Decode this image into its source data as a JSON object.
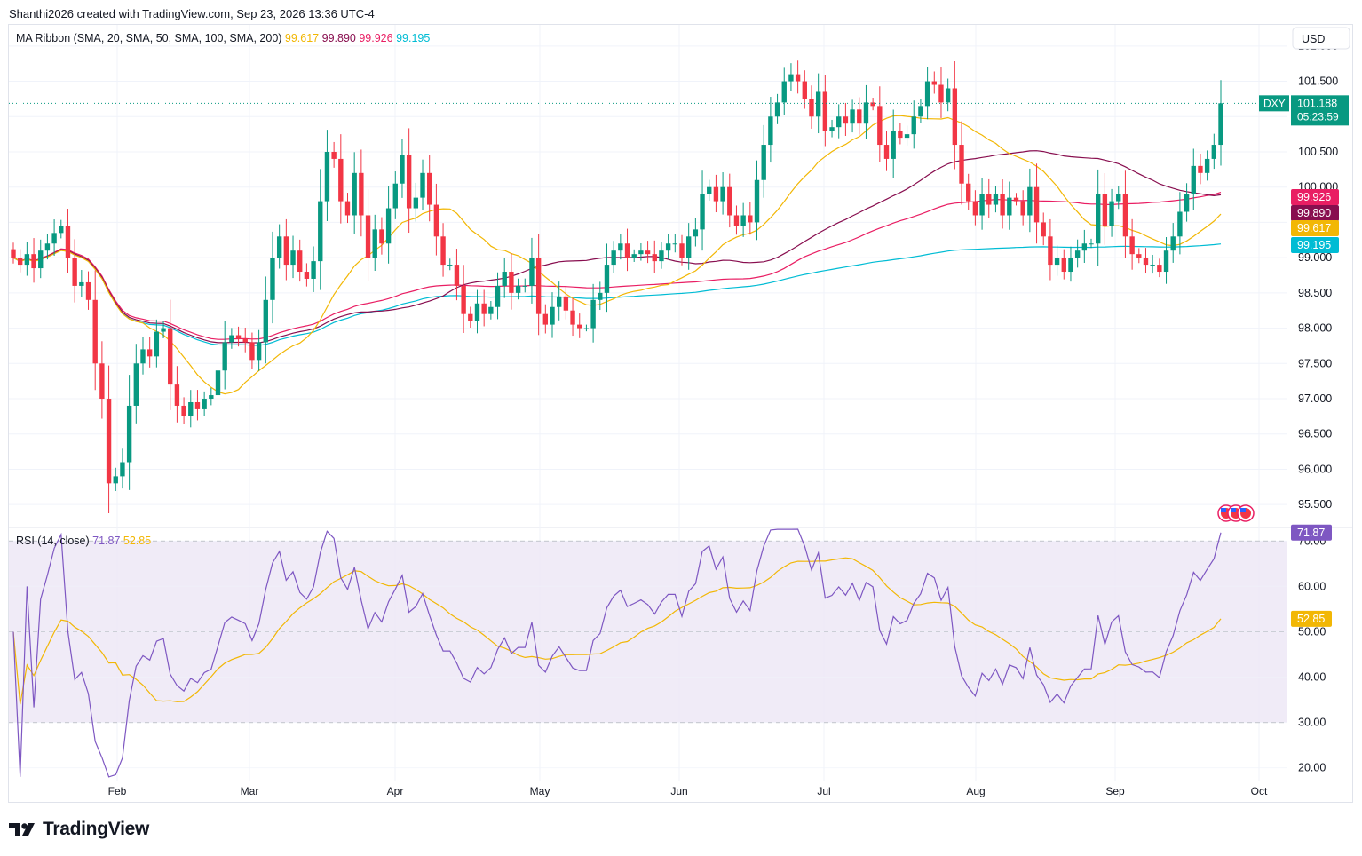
{
  "header": {
    "attribution": "Shanthi2026 created with TradingView.com, Sep 23, 2026 13:36 UTC-4"
  },
  "footer": {
    "brand": "TradingView"
  },
  "currency": "USD",
  "main_legend": {
    "label": "MA Ribbon (SMA, 20, SMA, 50, SMA, 100, SMA, 200)",
    "values": [
      {
        "text": "99.617",
        "color": "#f2b705"
      },
      {
        "text": "99.890",
        "color": "#880e4f"
      },
      {
        "text": "99.926",
        "color": "#e91e63"
      },
      {
        "text": "99.195",
        "color": "#00bcd4"
      }
    ]
  },
  "rsi_legend": {
    "label": "RSI (14, close)",
    "values": [
      {
        "text": "71.87",
        "color": "#7e57c2"
      },
      {
        "text": "52.85",
        "color": "#f2b705"
      }
    ]
  },
  "price_badges": {
    "symbol": "DXY",
    "last": "101.188",
    "countdown": "05:23:59",
    "ma_tags": [
      {
        "text": "99.926",
        "color": "#e91e63",
        "value": 99.926
      },
      {
        "text": "99.890",
        "color": "#880e4f",
        "value": 99.89
      },
      {
        "text": "99.617",
        "color": "#f2b705",
        "value": 99.617
      },
      {
        "text": "99.195",
        "color": "#00bcd4",
        "value": 99.195
      }
    ]
  },
  "rsi_badges": [
    {
      "text": "71.87",
      "color": "#7e57c2",
      "value": 71.87
    },
    {
      "text": "52.85",
      "color": "#f2b705",
      "value": 52.85
    }
  ],
  "colors": {
    "up": "#089981",
    "down": "#f23645",
    "sma20": "#f2b705",
    "sma50": "#880e4f",
    "sma100": "#e91e63",
    "sma200": "#00bcd4",
    "rsi": "#7e57c2",
    "rsi_ma": "#f2b705",
    "rsi_band": "#ede7f6"
  },
  "chart_data": [
    {
      "type": "candlestick",
      "symbol": "DXY",
      "ylim": [
        95.2,
        102.3
      ],
      "y_ticks": [
        "95.500",
        "96.000",
        "96.500",
        "97.000",
        "97.500",
        "98.000",
        "98.500",
        "99.000",
        "99.500",
        "100.000",
        "100.500",
        "101.000",
        "101.500",
        "102.000"
      ],
      "x_ticks": [
        "Feb",
        "Mar",
        "Apr",
        "May",
        "Jun",
        "Jul",
        "Aug",
        "Sep",
        "Oct"
      ],
      "last_price": 101.188,
      "grid": true,
      "closes": [
        99.0,
        98.9,
        99.05,
        98.85,
        99.1,
        99.2,
        99.35,
        99.45,
        99.0,
        98.6,
        98.65,
        98.4,
        97.5,
        97.0,
        95.8,
        95.9,
        96.1,
        96.9,
        97.5,
        97.7,
        97.6,
        97.95,
        98.0,
        97.2,
        96.9,
        96.75,
        96.95,
        96.85,
        97.0,
        97.05,
        97.4,
        97.8,
        97.9,
        97.85,
        97.8,
        97.55,
        97.8,
        98.4,
        99.0,
        99.3,
        98.9,
        99.1,
        98.8,
        98.7,
        98.95,
        99.8,
        100.5,
        100.4,
        99.8,
        99.6,
        100.2,
        99.6,
        99.0,
        99.4,
        99.2,
        99.7,
        100.05,
        100.45,
        99.7,
        99.85,
        100.2,
        99.75,
        99.3,
        98.9,
        98.9,
        98.6,
        98.2,
        98.1,
        98.35,
        98.2,
        98.3,
        98.6,
        98.8,
        98.5,
        98.6,
        98.6,
        99.0,
        98.2,
        98.05,
        98.3,
        98.45,
        98.25,
        98.05,
        98.0,
        98.0,
        98.4,
        98.5,
        98.9,
        99.1,
        99.2,
        99.0,
        99.05,
        99.1,
        99.05,
        98.95,
        99.1,
        99.2,
        99.2,
        99.0,
        99.3,
        99.4,
        99.9,
        100.0,
        99.8,
        100.0,
        99.6,
        99.45,
        99.6,
        99.5,
        100.1,
        100.6,
        101.0,
        101.2,
        101.5,
        101.6,
        101.5,
        101.25,
        101.0,
        101.35,
        100.8,
        100.85,
        101.0,
        100.9,
        101.1,
        100.9,
        101.2,
        101.15,
        100.6,
        100.4,
        100.8,
        100.7,
        100.75,
        101.0,
        101.15,
        101.5,
        101.45,
        101.2,
        101.4,
        100.6,
        100.05,
        99.8,
        99.6,
        99.9,
        99.75,
        99.9,
        99.6,
        99.85,
        99.8,
        99.6,
        100.0,
        99.5,
        99.3,
        98.9,
        99.0,
        98.8,
        99.0,
        99.1,
        99.2,
        99.2,
        99.9,
        99.45,
        99.8,
        99.9,
        99.3,
        99.05,
        99.0,
        98.9,
        98.9,
        98.8,
        99.1,
        99.3,
        99.65,
        99.9,
        100.3,
        100.2,
        100.4,
        100.6,
        101.188
      ],
      "overlays": [
        {
          "name": "SMA 20",
          "last": 99.617
        },
        {
          "name": "SMA 50",
          "last": 99.89
        },
        {
          "name": "SMA 100",
          "last": 99.926
        },
        {
          "name": "SMA 200",
          "last": 99.195
        }
      ]
    },
    {
      "type": "line",
      "title": "RSI (14, close)",
      "ylim": [
        17,
        73
      ],
      "y_ticks": [
        "20.00",
        "30.00",
        "40.00",
        "50.00",
        "60.00",
        "70.00"
      ],
      "bands": {
        "overbought": 70,
        "middle": 50,
        "oversold": 30
      },
      "series": [
        {
          "name": "RSI",
          "last": 71.87
        },
        {
          "name": "RSI-based MA",
          "last": 52.85
        }
      ]
    }
  ]
}
